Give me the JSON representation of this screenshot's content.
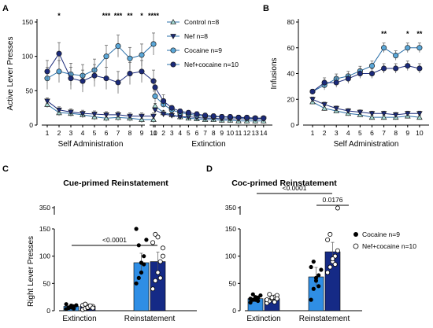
{
  "chart_data": [
    {
      "panel": "A",
      "type": "line",
      "ylabel": "Active Lever Presses",
      "ylim": [
        0,
        150
      ],
      "yticks": [
        0,
        50,
        100,
        150
      ],
      "segments": [
        {
          "xlabel": "Self Administration",
          "x": [
            1,
            2,
            3,
            4,
            5,
            6,
            7,
            8,
            9,
            10
          ]
        },
        {
          "xlabel": "Extinction",
          "x": [
            1,
            2,
            3,
            4,
            5,
            6,
            7,
            8,
            9,
            10,
            11,
            12,
            13,
            14
          ]
        }
      ],
      "series": [
        {
          "name": "Control n=8",
          "marker": "triangle-up",
          "fill": "#a7dcd5",
          "self_admin": [
            30,
            18,
            17,
            15,
            12,
            10,
            11,
            10,
            8,
            8
          ],
          "extinction": [
            28,
            18,
            15,
            12,
            10,
            9,
            8,
            8,
            7,
            7,
            6,
            6,
            6,
            6
          ]
        },
        {
          "name": "Nef n=8",
          "marker": "triangle-down",
          "fill": "#1b2a7a",
          "self_admin": [
            35,
            22,
            19,
            17,
            16,
            15,
            15,
            13,
            13,
            13
          ],
          "extinction": [
            22,
            16,
            14,
            12,
            12,
            11,
            10,
            10,
            9,
            9,
            9,
            9,
            9,
            9
          ]
        },
        {
          "name": "Cocaine n=9",
          "marker": "circle",
          "fill": "#5aa7d8",
          "self_admin": [
            68,
            78,
            74,
            72,
            80,
            100,
            115,
            97,
            102,
            118
          ],
          "extinction": [
            42,
            30,
            22,
            18,
            16,
            14,
            13,
            12,
            12,
            11,
            11,
            10,
            10,
            10
          ]
        },
        {
          "name": "Nef+cocaine n=10",
          "marker": "circle",
          "fill": "#1b2a7a",
          "self_admin": [
            78,
            104,
            68,
            64,
            72,
            68,
            62,
            75,
            78,
            64
          ],
          "extinction": [
            55,
            35,
            25,
            20,
            18,
            16,
            14,
            13,
            12,
            12,
            11,
            11,
            10,
            10
          ]
        }
      ],
      "significance": [
        {
          "session": 2,
          "label": "*"
        },
        {
          "session": 6,
          "label": "***"
        },
        {
          "session": 7,
          "label": "***"
        },
        {
          "session": 8,
          "label": "**"
        },
        {
          "session": 9,
          "label": "*"
        },
        {
          "session": 10,
          "label": "****"
        }
      ]
    },
    {
      "panel": "B",
      "type": "line",
      "xlabel": "Self Administration",
      "ylabel": "Infusions",
      "ylim": [
        0,
        80
      ],
      "yticks": [
        0,
        20,
        40,
        60,
        80
      ],
      "x": [
        1,
        2,
        3,
        4,
        5,
        6,
        7,
        8,
        9,
        10
      ],
      "series": [
        {
          "name": "Control n=8",
          "marker": "triangle-up",
          "fill": "#a7dcd5",
          "values": [
            18,
            13,
            11,
            9,
            8,
            6,
            6,
            6,
            7,
            6
          ]
        },
        {
          "name": "Nef n=8",
          "marker": "triangle-down",
          "fill": "#1b2a7a",
          "values": [
            20,
            16,
            13,
            11,
            10,
            9,
            9,
            8,
            9,
            9
          ]
        },
        {
          "name": "Cocaine n=9",
          "marker": "circle",
          "fill": "#5aa7d8",
          "values": [
            26,
            31,
            36,
            38,
            42,
            46,
            60,
            54,
            60,
            60
          ]
        },
        {
          "name": "Nef+cocaine n=10",
          "marker": "circle",
          "fill": "#1b2a7a",
          "values": [
            26,
            33,
            33,
            36,
            40,
            40,
            44,
            44,
            46,
            44
          ]
        }
      ],
      "significance": [
        {
          "session": 7,
          "label": "**"
        },
        {
          "session": 9,
          "label": "*"
        },
        {
          "session": 10,
          "label": "**"
        }
      ]
    },
    {
      "panel": "C",
      "type": "bar",
      "title": "Cue-primed Reinstatement",
      "ylabel": "Right Lever Presses",
      "categories": [
        "Extinction",
        "Reinstatement"
      ],
      "ylim": [
        0,
        350
      ],
      "yticks": [
        0,
        50,
        100,
        150,
        350
      ],
      "axis_break": [
        150,
        350
      ],
      "series": [
        {
          "name": "Cocaine n=9",
          "fill": "#2f8ee5",
          "values": [
            8,
            88
          ],
          "points": [
            [
              3,
              5,
              6,
              8,
              10,
              12,
              6,
              9,
              4
            ],
            [
              50,
              60,
              88,
              100,
              130,
              150,
              120,
              70,
              85
            ]
          ]
        },
        {
          "name": "Nef+cocaine n=10",
          "fill": "#152a86",
          "values": [
            8,
            90
          ],
          "points": [
            [
              2,
              4,
              5,
              7,
              8,
              10,
              12,
              6,
              9,
              5
            ],
            [
              40,
              55,
              70,
              90,
              115,
              125,
              140,
              135,
              60,
              100
            ]
          ]
        }
      ],
      "comparisons": [
        {
          "label": "<0.0001",
          "from": "Extinction",
          "to": "Reinstatement"
        }
      ]
    },
    {
      "panel": "D",
      "type": "bar",
      "title": "Coc-primed Reinstatement",
      "categories": [
        "Extinction",
        "Reinstatement"
      ],
      "ylim": [
        0,
        350
      ],
      "yticks": [
        0,
        50,
        100,
        150,
        350
      ],
      "axis_break": [
        150,
        350
      ],
      "series": [
        {
          "name": "Cocaine n=9",
          "fill": "#2f8ee5",
          "values": [
            22,
            62
          ],
          "points": [
            [
              15,
              20,
              25,
              18,
              28,
              22,
              30,
              20,
              24
            ],
            [
              20,
              40,
              55,
              65,
              75,
              80,
              90,
              60,
              45
            ]
          ]
        },
        {
          "name": "Nef+cocaine n=10",
          "fill": "#152a86",
          "values": [
            22,
            108
          ],
          "points": [
            [
              14,
              18,
              22,
              25,
              28,
              20,
              30,
              24,
              16,
              22
            ],
            [
              70,
              80,
              90,
              100,
              110,
              130,
              140,
              95,
              85,
              340
            ]
          ]
        }
      ],
      "comparisons": [
        {
          "label": "<0.0001"
        },
        {
          "label": "0.0176"
        }
      ],
      "legend": [
        {
          "name": "Cocaine n=9",
          "marker": "filled-circle"
        },
        {
          "name": "Nef+cocaine n=10",
          "marker": "open-circle"
        }
      ]
    }
  ],
  "labels": {
    "panelA": "A",
    "panelB": "B",
    "panelC": "C",
    "panelD": "D",
    "legendA": [
      "Control n=8",
      "Nef n=8",
      "Cocaine n=9",
      "Nef+cocaine n=10"
    ]
  }
}
